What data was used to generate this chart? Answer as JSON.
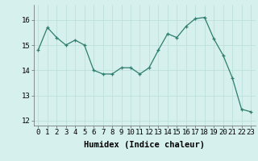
{
  "x": [
    0,
    1,
    2,
    3,
    4,
    5,
    6,
    7,
    8,
    9,
    10,
    11,
    12,
    13,
    14,
    15,
    16,
    17,
    18,
    19,
    20,
    21,
    22,
    23
  ],
  "y": [
    14.8,
    15.7,
    15.3,
    15.0,
    15.2,
    15.0,
    14.0,
    13.85,
    13.85,
    14.1,
    14.1,
    13.85,
    14.1,
    14.8,
    15.45,
    15.3,
    15.75,
    16.05,
    16.1,
    15.25,
    14.6,
    13.7,
    12.45,
    12.35
  ],
  "xlabel": "Humidex (Indice chaleur)",
  "ylim": [
    11.8,
    16.6
  ],
  "xlim": [
    -0.5,
    23.5
  ],
  "yticks": [
    12,
    13,
    14,
    15,
    16
  ],
  "xticks": [
    0,
    1,
    2,
    3,
    4,
    5,
    6,
    7,
    8,
    9,
    10,
    11,
    12,
    13,
    14,
    15,
    16,
    17,
    18,
    19,
    20,
    21,
    22,
    23
  ],
  "line_color": "#2e7d6e",
  "marker_color": "#2e7d6e",
  "bg_color": "#d6f0ed",
  "grid_color": "#b8dcd8",
  "tick_label_fontsize": 6.5,
  "xlabel_fontsize": 7.5
}
